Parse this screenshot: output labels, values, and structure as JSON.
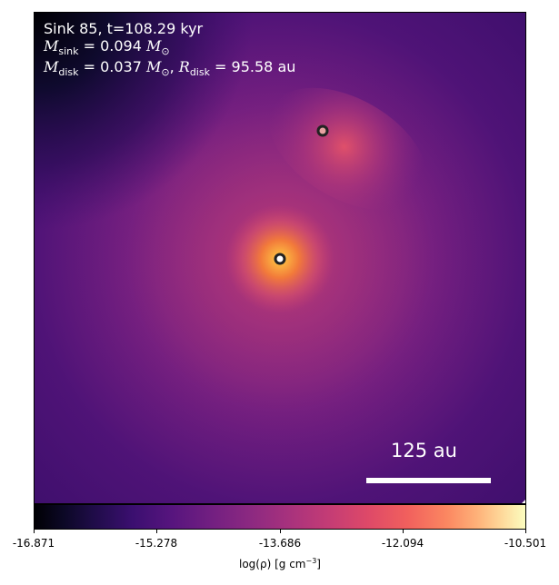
{
  "annotation": {
    "sink_line": "Sink 85, t=108.29 kyr",
    "m_sink_symbol": "M",
    "m_sink_sub": "sink",
    "m_sink_value": " = 0.094 ",
    "m_sun_symbol": "M",
    "m_sun_sub": "⊙",
    "m_disk_symbol": "M",
    "m_disk_sub": "disk",
    "m_disk_value": " = 0.037 ",
    "r_disk_symbol": "R",
    "r_disk_sub": "disk",
    "r_disk_value": " = 95.58 au"
  },
  "scalebar": {
    "label": "125 au"
  },
  "colorbar": {
    "ticks": [
      "-16.871",
      "-15.278",
      "-13.686",
      "-12.094",
      "-10.501"
    ],
    "label_main": "log(ρ) [g cm",
    "label_exp": "−3",
    "label_end": "]"
  },
  "colors": {
    "primary_sink": "#ffffff",
    "secondary_sink": "#e8a2a2",
    "sink_outline": "#222222"
  }
}
